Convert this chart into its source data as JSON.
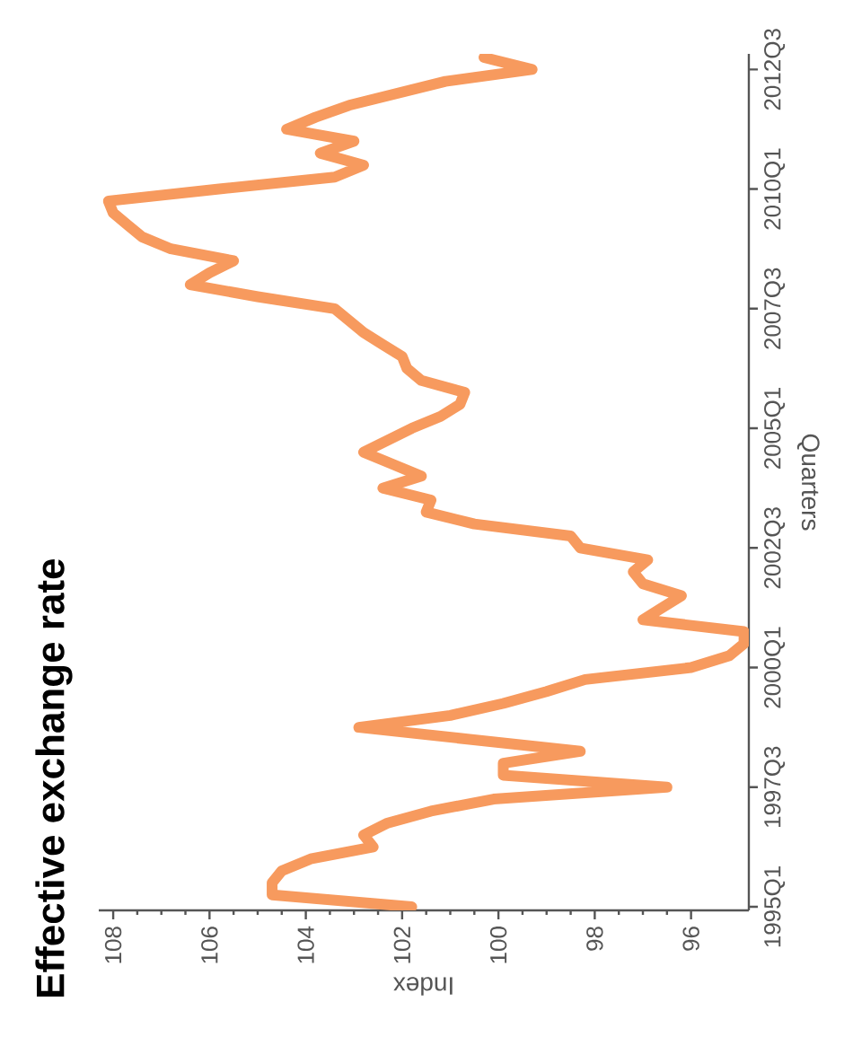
{
  "chart_data": {
    "type": "line",
    "orientation": "horizontal",
    "title": "Effective exchange rate",
    "xlabel": "Index",
    "ylabel": "Quarters",
    "categories": [
      null,
      "2012Q3",
      null,
      null,
      null,
      null,
      null,
      null,
      null,
      null,
      null,
      "2010Q1",
      null,
      null,
      null,
      null,
      null,
      null,
      null,
      null,
      null,
      "2007Q3",
      null,
      null,
      null,
      null,
      null,
      null,
      null,
      null,
      null,
      "2005Q1",
      null,
      null,
      null,
      null,
      null,
      null,
      null,
      null,
      null,
      "2002Q3",
      null,
      null,
      null,
      null,
      null,
      null,
      null,
      null,
      null,
      "2000Q1",
      null,
      null,
      null,
      null,
      null,
      null,
      null,
      null,
      null,
      "1997Q3",
      null,
      null,
      null,
      null,
      null,
      null,
      null,
      null,
      null,
      "1995Q1"
    ],
    "series": [
      {
        "color": "#f79a5e",
        "values": [
          100.3,
          99.3,
          101.1,
          102.1,
          103.1,
          103.8,
          104.4,
          103.0,
          103.7,
          102.8,
          103.4,
          105.8,
          108.1,
          108.0,
          107.7,
          107.4,
          106.8,
          105.5,
          106.0,
          106.4,
          105.0,
          103.4,
          103.1,
          102.8,
          102.4,
          102.0,
          101.9,
          101.6,
          100.7,
          100.8,
          101.2,
          101.8,
          102.3,
          102.8,
          102.2,
          101.6,
          102.4,
          101.4,
          101.5,
          100.5,
          98.5,
          98.3,
          96.9,
          97.2,
          97.0,
          96.2,
          96.6,
          97.0,
          94.9,
          94.9,
          95.2,
          96.0,
          98.2,
          99.0,
          99.9,
          101.0,
          102.9,
          100.6,
          98.3,
          99.9,
          99.9,
          96.5,
          100.1,
          101.4,
          102.3,
          102.8,
          102.6,
          103.9,
          104.5,
          104.7,
          104.7,
          101.8
        ]
      }
    ],
    "xlim": [
      108.3,
      94.8
    ],
    "xticks": [
      108,
      106,
      104,
      102,
      100,
      98,
      96
    ],
    "marker": "none",
    "line_style": "solid"
  }
}
